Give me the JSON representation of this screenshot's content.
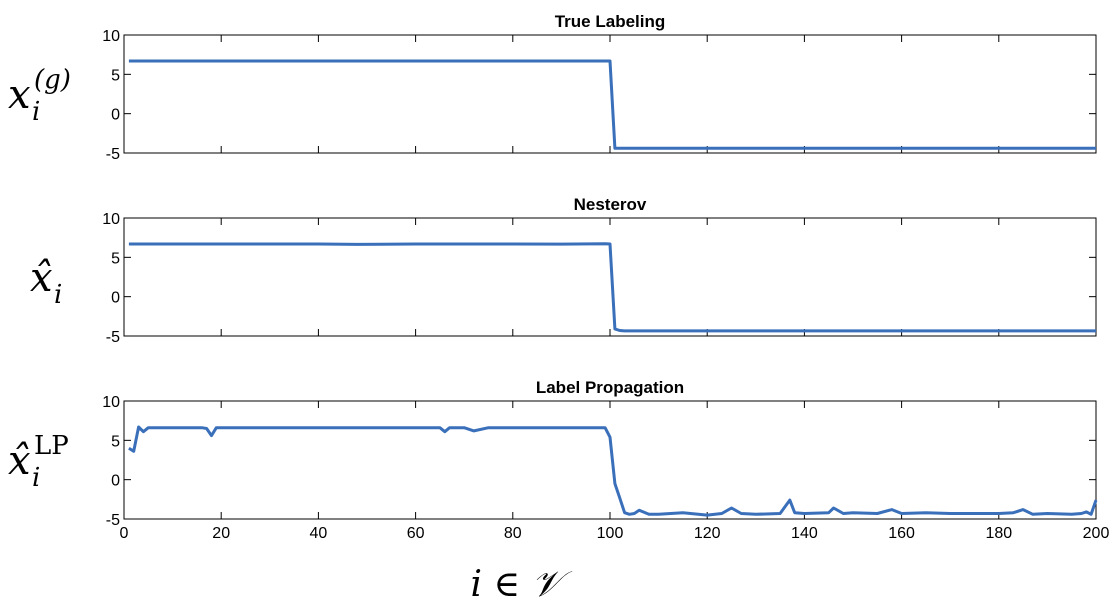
{
  "chart_data": [
    {
      "type": "line",
      "title": "True Labeling",
      "ylabel": "x_i^(g)",
      "ylabel_parts": {
        "base": "x",
        "sub": "i",
        "sup": "(g)"
      },
      "xlim": [
        0,
        200
      ],
      "ylim": [
        -5,
        10
      ],
      "yticks": [
        10,
        5,
        0,
        -5
      ],
      "show_x_ticklabels": false,
      "grid": false,
      "color": "#3a6fba",
      "series": [
        {
          "x": [
            1,
            100,
            101,
            200
          ],
          "y": [
            6.7,
            6.7,
            -4.4,
            -4.4
          ]
        }
      ]
    },
    {
      "type": "line",
      "title": "Nesterov",
      "ylabel": "x̂_i",
      "ylabel_parts": {
        "base": "x̂",
        "sub": "i",
        "sup": ""
      },
      "xlim": [
        0,
        200
      ],
      "ylim": [
        -5,
        10
      ],
      "yticks": [
        10,
        5,
        0,
        -5
      ],
      "show_x_ticklabels": false,
      "grid": false,
      "color": "#3a6fba",
      "series": [
        {
          "x": [
            1,
            20,
            40,
            48,
            60,
            80,
            90,
            99,
            100,
            101,
            102,
            103,
            120,
            150,
            180,
            200
          ],
          "y": [
            6.7,
            6.7,
            6.7,
            6.65,
            6.7,
            6.7,
            6.68,
            6.72,
            6.7,
            -4.1,
            -4.3,
            -4.35,
            -4.35,
            -4.35,
            -4.35,
            -4.35
          ]
        }
      ]
    },
    {
      "type": "line",
      "title": "Label Propagation",
      "ylabel": "x̂_i^LP",
      "ylabel_parts": {
        "base": "x̂",
        "sub": "i",
        "sup": "LP"
      },
      "xlabel": "i∈𝒱",
      "xlim": [
        0,
        200
      ],
      "ylim": [
        -5,
        10
      ],
      "yticks": [
        10,
        5,
        0,
        -5
      ],
      "xticks": [
        0,
        20,
        40,
        60,
        80,
        100,
        120,
        140,
        160,
        180,
        200
      ],
      "show_x_ticklabels": true,
      "grid": false,
      "color": "#3a6fba",
      "series": [
        {
          "x": [
            1,
            2,
            3,
            4,
            5,
            6,
            8,
            10,
            12,
            14,
            16,
            17,
            18,
            19,
            20,
            25,
            30,
            35,
            40,
            45,
            50,
            55,
            60,
            65,
            66,
            67,
            68,
            70,
            72,
            75,
            80,
            85,
            90,
            95,
            99,
            100,
            101,
            102,
            103,
            104,
            105,
            106,
            108,
            110,
            115,
            120,
            123,
            125,
            127,
            130,
            135,
            137,
            138,
            140,
            145,
            146,
            148,
            150,
            155,
            158,
            160,
            165,
            170,
            175,
            180,
            183,
            185,
            187,
            190,
            195,
            197,
            198,
            199,
            200
          ],
          "y": [
            4.0,
            3.6,
            6.7,
            6.1,
            6.6,
            6.6,
            6.6,
            6.6,
            6.6,
            6.6,
            6.6,
            6.5,
            5.6,
            6.6,
            6.6,
            6.6,
            6.6,
            6.6,
            6.6,
            6.6,
            6.6,
            6.6,
            6.6,
            6.6,
            6.1,
            6.6,
            6.6,
            6.6,
            6.2,
            6.6,
            6.6,
            6.6,
            6.6,
            6.6,
            6.6,
            5.4,
            -0.5,
            -2.3,
            -4.2,
            -4.4,
            -4.3,
            -3.9,
            -4.4,
            -4.4,
            -4.2,
            -4.5,
            -4.3,
            -3.6,
            -4.3,
            -4.4,
            -4.3,
            -2.6,
            -4.2,
            -4.3,
            -4.2,
            -3.6,
            -4.3,
            -4.2,
            -4.3,
            -3.8,
            -4.3,
            -4.2,
            -4.3,
            -4.3,
            -4.3,
            -4.2,
            -3.8,
            -4.4,
            -4.3,
            -4.4,
            -4.3,
            -4.1,
            -4.4,
            -2.6
          ]
        }
      ]
    }
  ]
}
